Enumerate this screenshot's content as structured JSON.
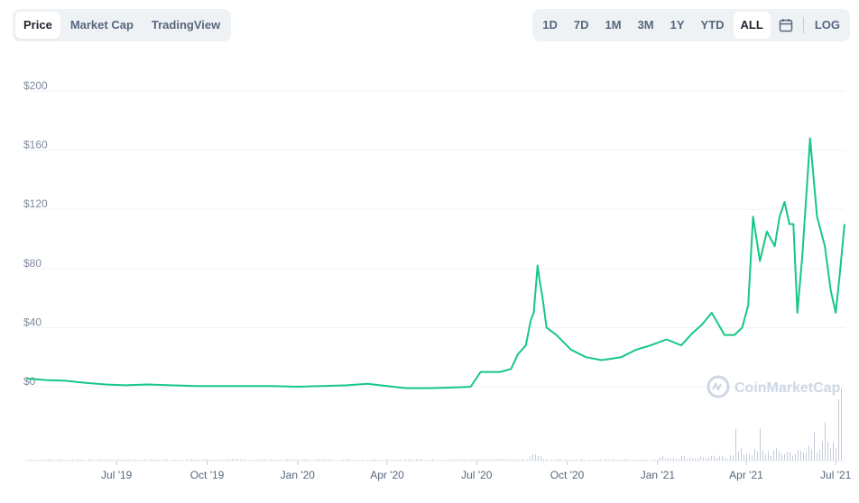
{
  "tabs": [
    {
      "label": "Price",
      "active": true
    },
    {
      "label": "Market Cap",
      "active": false
    },
    {
      "label": "TradingView",
      "active": false
    }
  ],
  "ranges": [
    {
      "label": "1D",
      "active": false
    },
    {
      "label": "7D",
      "active": false
    },
    {
      "label": "1M",
      "active": false
    },
    {
      "label": "3M",
      "active": false
    },
    {
      "label": "1Y",
      "active": false
    },
    {
      "label": "YTD",
      "active": false
    },
    {
      "label": "ALL",
      "active": true
    }
  ],
  "calendar_icon": "calendar-icon",
  "log_label": "LOG",
  "watermark": "CoinMarketCap",
  "colors": {
    "line": "#16c784",
    "grid": "#eff2f5",
    "volume": "#c3cbd8"
  },
  "chart_data": {
    "type": "line",
    "title": "",
    "xlabel": "",
    "ylabel": "",
    "ylim": [
      0,
      200
    ],
    "y_ticks": [
      "$0",
      "$40",
      "$80",
      "$120",
      "$160",
      "$200"
    ],
    "y_tick_values": [
      0,
      40,
      80,
      120,
      160,
      200
    ],
    "x_ticks": [
      "Jul '19",
      "Oct '19",
      "Jan '20",
      "Apr '20",
      "Jul '20",
      "Oct '20",
      "Jan '21",
      "Apr '21",
      "Jul '21"
    ],
    "x_tick_dates": [
      "2019-07-01",
      "2019-10-01",
      "2020-01-01",
      "2020-04-01",
      "2020-07-01",
      "2020-10-01",
      "2021-01-01",
      "2021-04-01",
      "2021-07-01"
    ],
    "x_range": [
      "2019-04-01",
      "2021-07-10"
    ],
    "grid": true,
    "legend": "none",
    "series": [
      {
        "x": [
          "2019-04-01",
          "2019-04-20",
          "2019-05-10",
          "2019-06-01",
          "2019-06-20",
          "2019-07-10",
          "2019-08-01",
          "2019-08-25",
          "2019-09-20",
          "2019-10-15",
          "2019-11-10",
          "2019-12-05",
          "2020-01-01",
          "2020-01-25",
          "2020-02-20",
          "2020-03-12",
          "2020-03-25",
          "2020-04-20",
          "2020-05-15",
          "2020-06-10",
          "2020-06-25",
          "2020-07-05",
          "2020-07-25",
          "2020-08-05",
          "2020-08-12",
          "2020-08-20",
          "2020-08-25",
          "2020-08-28",
          "2020-09-01",
          "2020-09-03",
          "2020-09-06",
          "2020-09-10",
          "2020-09-20",
          "2020-10-05",
          "2020-10-20",
          "2020-11-05",
          "2020-11-25",
          "2020-12-10",
          "2020-12-25",
          "2021-01-10",
          "2021-01-25",
          "2021-02-05",
          "2021-02-15",
          "2021-02-25",
          "2021-03-10",
          "2021-03-20",
          "2021-03-28",
          "2021-04-03",
          "2021-04-08",
          "2021-04-15",
          "2021-04-22",
          "2021-04-30",
          "2021-05-05",
          "2021-05-10",
          "2021-05-15",
          "2021-05-19",
          "2021-05-23",
          "2021-05-28",
          "2021-06-05",
          "2021-06-12",
          "2021-06-20",
          "2021-06-26",
          "2021-07-01",
          "2021-07-05",
          "2021-07-10"
        ],
        "values": [
          5.5,
          4.5,
          4,
          2.5,
          1.5,
          1,
          1.5,
          1,
          0.5,
          0.5,
          0.5,
          0.5,
          0,
          0.5,
          1,
          2,
          1,
          -1,
          -1,
          -0.5,
          0,
          10,
          10,
          12,
          22,
          28,
          45,
          50,
          82,
          72,
          60,
          40,
          35,
          25,
          20,
          18,
          20,
          25,
          28,
          32,
          28,
          36,
          42,
          50,
          35,
          35,
          40,
          55,
          115,
          85,
          105,
          95,
          115,
          125,
          110,
          110,
          50,
          88,
          168,
          115,
          95,
          65,
          50,
          75,
          110
        ]
      }
    ]
  }
}
